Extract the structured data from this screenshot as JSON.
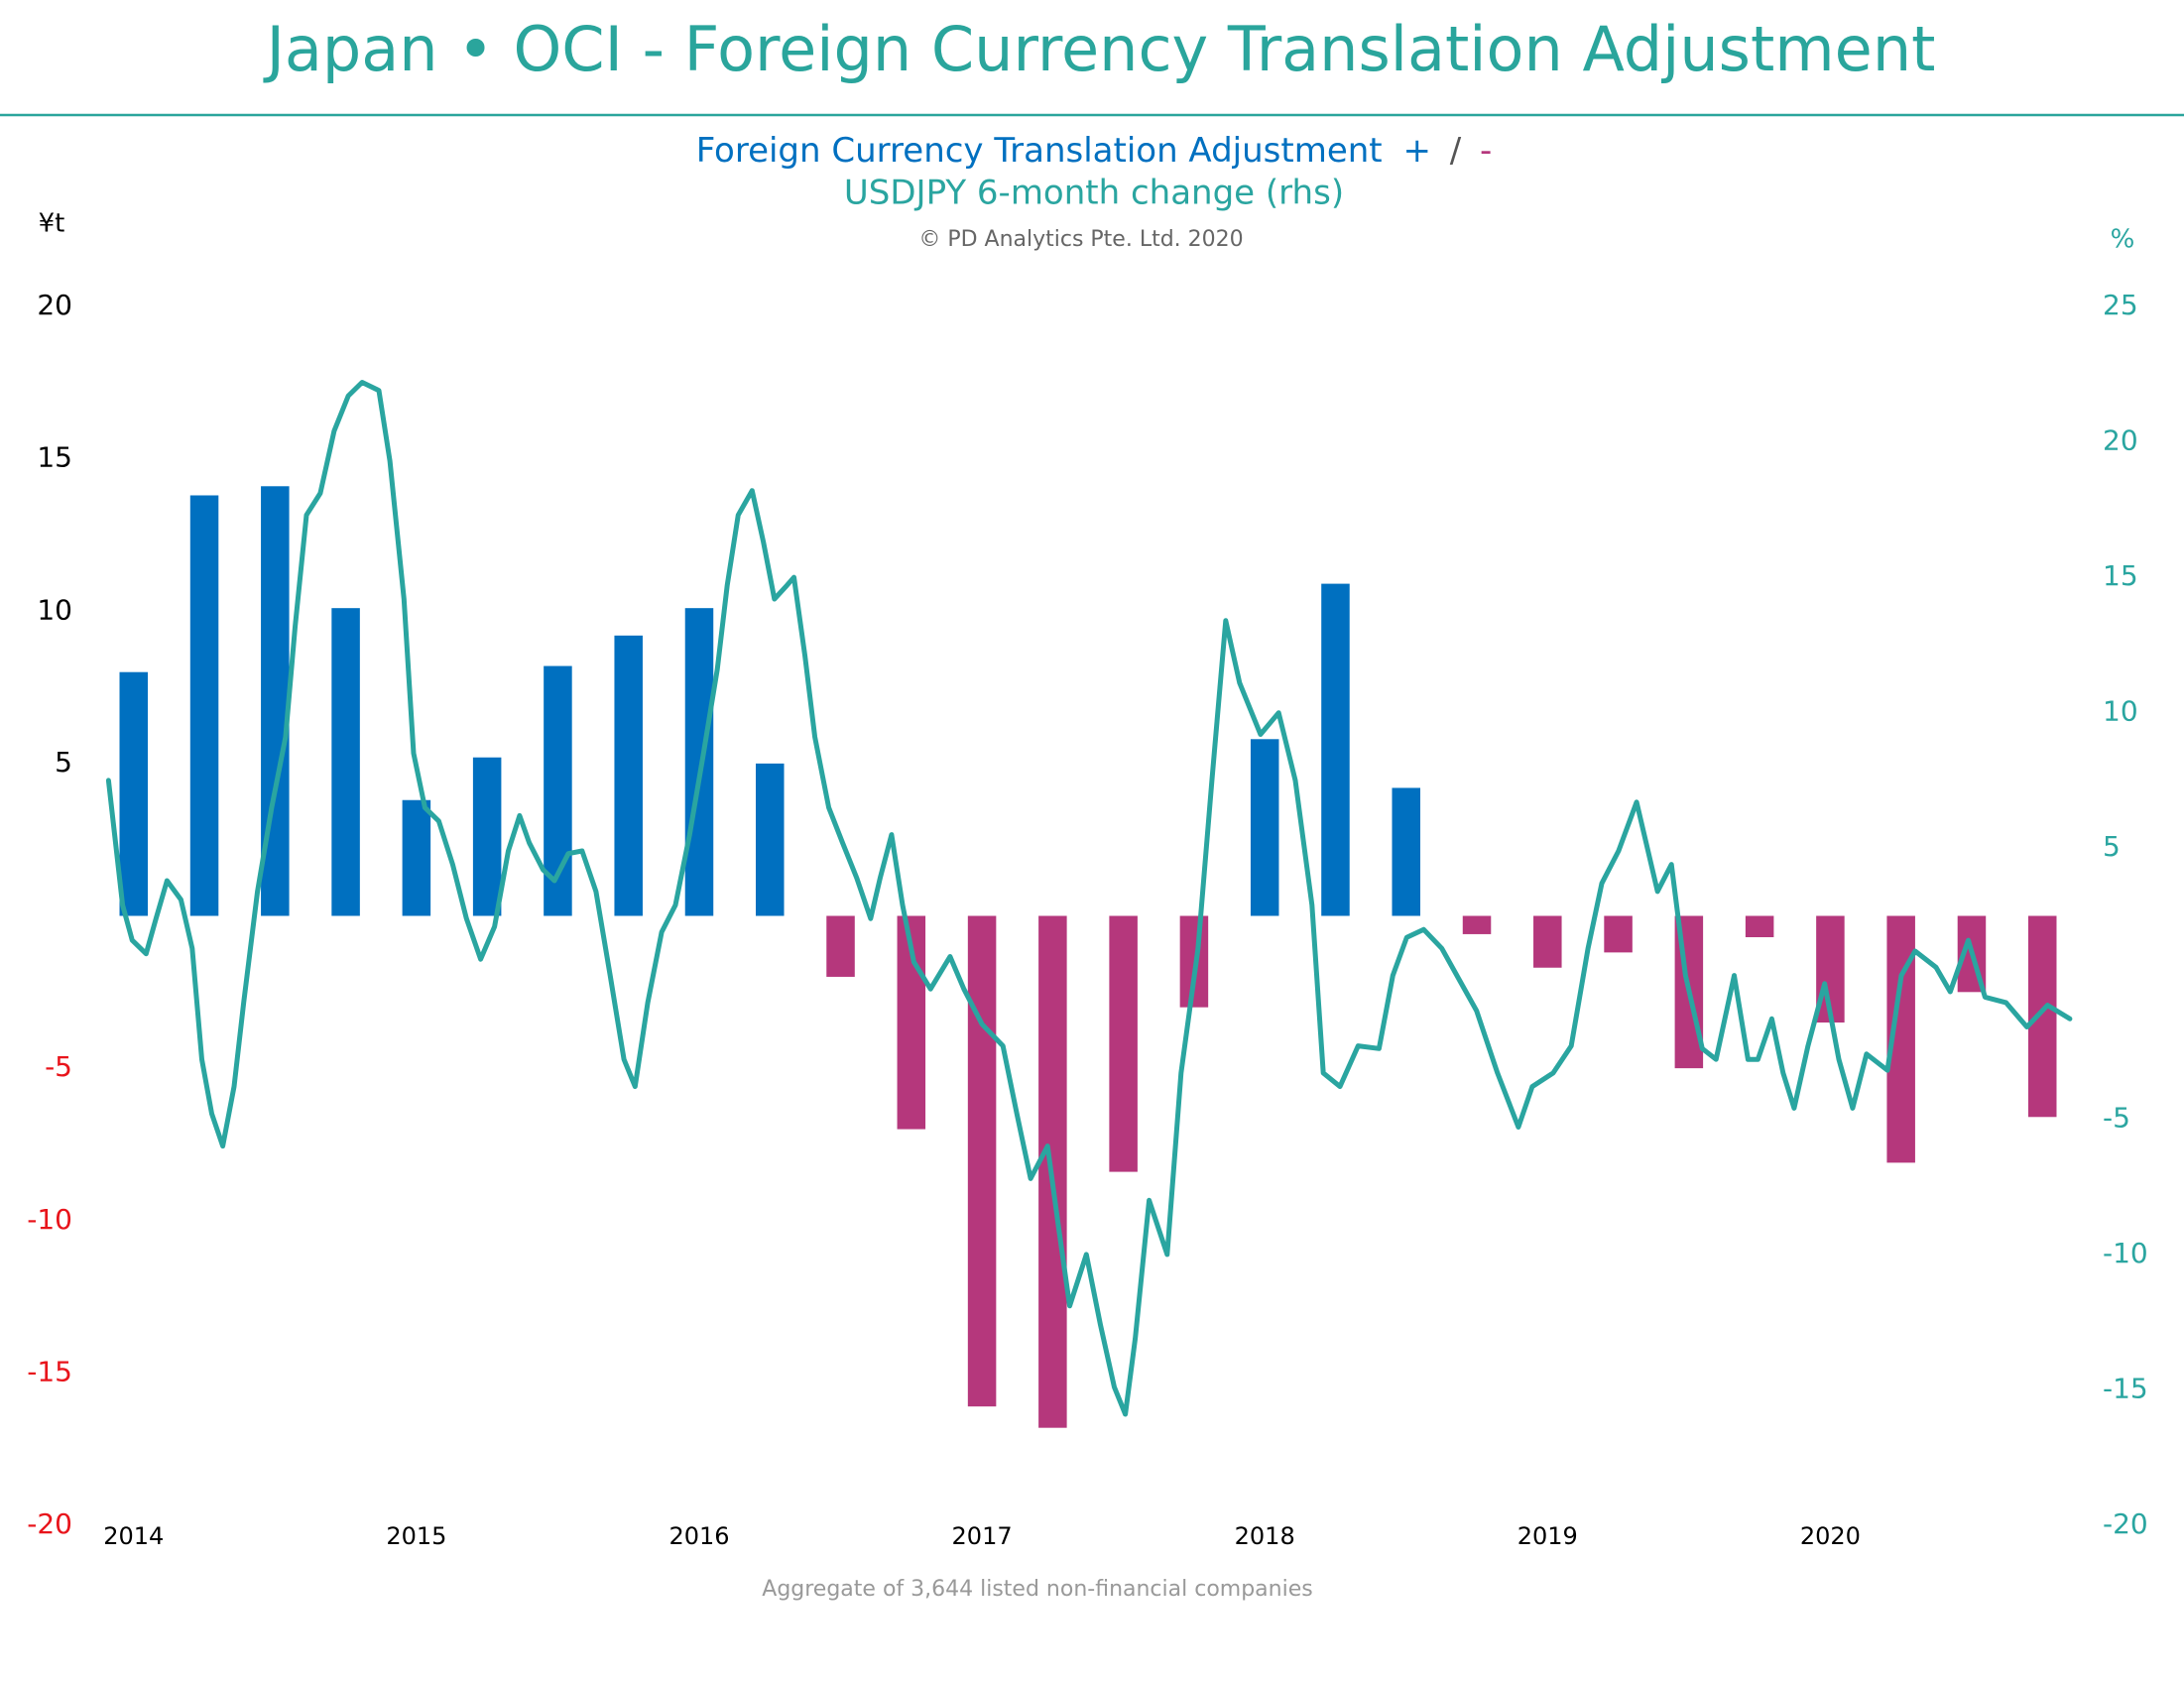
{
  "chart_data": {
    "type": "bar_line",
    "title": "Japan •  OCI - Foreign Currency Translation Adjustment",
    "positive_label": "+",
    "separator": "/",
    "negative_label": "-",
    "source": "© PD Analytics Pte. Ltd. 2020",
    "note": "Aggregate of 3,644 listed non-financial companies",
    "ylabel": "¥t",
    "y2label": "%",
    "xlim": [
      2013.85,
      2020.9
    ],
    "xticks": [
      2014,
      2015,
      2016,
      2017,
      2018,
      2019,
      2020
    ],
    "ylim": [
      -20,
      20
    ],
    "yticks": [
      -20,
      -15,
      -10,
      -5,
      5,
      10,
      15,
      20
    ],
    "y2lim": [
      -20,
      25
    ],
    "y2ticks": [
      -20,
      -15,
      -10,
      -5,
      5,
      10,
      15,
      20,
      25
    ],
    "title_color": "#2aa59c",
    "tick_color": "#000000",
    "negative_tick_color": "#e8141b",
    "series": [
      {
        "name": "Foreign Currency Translation Adjustment",
        "type": "bar",
        "color": "#0070c0",
        "negative_color": "#b5377c",
        "x": [
          2014,
          2014.25,
          2014.5,
          2014.75,
          2015,
          2015.25,
          2015.5,
          2015.75,
          2016,
          2016.25,
          2016.5,
          2016.75,
          2017,
          2017.25,
          2017.5,
          2017.75,
          2018,
          2018.25,
          2018.5,
          2018.75,
          2019,
          2019.25,
          2019.5,
          2019.75,
          2020,
          2020.25,
          2020.5,
          2020.75
        ],
        "values": [
          8.0,
          13.8,
          14.1,
          10.1,
          3.8,
          5.2,
          8.2,
          9.2,
          10.1,
          5.0,
          -2.0,
          -7.0,
          -16.1,
          -16.8,
          -8.4,
          -3.0,
          5.8,
          10.9,
          4.2,
          -0.6,
          -1.7,
          -1.2,
          -5.0,
          -0.7,
          -3.5,
          -8.1,
          -2.5,
          -6.6
        ]
      },
      {
        "name": "USDJPY 6-month change (rhs)",
        "type": "line",
        "axis": "y2",
        "color": "#2aa5a0",
        "x": [
          2013.911,
          2013.961,
          2013.995,
          2014.044,
          2014.079,
          2014.118,
          2014.167,
          2014.207,
          2014.241,
          2014.276,
          2014.315,
          2014.355,
          2014.389,
          2014.438,
          2014.488,
          2014.537,
          2014.571,
          2014.611,
          2014.66,
          2014.709,
          2014.759,
          2014.808,
          2014.867,
          2014.906,
          2014.956,
          2014.99,
          2015.03,
          2015.079,
          2015.128,
          2015.177,
          2015.227,
          2015.276,
          2015.325,
          2015.365,
          2015.399,
          2015.448,
          2015.488,
          2015.537,
          2015.586,
          2015.635,
          2015.685,
          2015.734,
          2015.773,
          2015.818,
          2015.867,
          2015.916,
          2015.966,
          2016.015,
          2016.064,
          2016.099,
          2016.138,
          2016.187,
          2016.227,
          2016.266,
          2016.31,
          2016.335,
          2016.374,
          2016.409,
          2016.458,
          2016.507,
          2016.557,
          2016.606,
          2016.64,
          2016.68,
          2016.719,
          2016.759,
          2016.818,
          2016.887,
          2016.936,
          2017.0,
          2017.074,
          2017.123,
          2017.172,
          2017.232,
          2017.271,
          2017.31,
          2017.369,
          2017.419,
          2017.468,
          2017.507,
          2017.542,
          2017.591,
          2017.655,
          2017.704,
          2017.764,
          2017.813,
          2017.862,
          2017.911,
          2017.985,
          2018.049,
          2018.108,
          2018.167,
          2018.207,
          2018.266,
          2018.33,
          2018.404,
          2018.453,
          2018.502,
          2018.562,
          2018.626,
          2018.69,
          2018.749,
          2018.823,
          2018.897,
          2018.946,
          2019.02,
          2019.084,
          2019.143,
          2019.192,
          2019.251,
          2019.315,
          2019.389,
          2019.438,
          2019.488,
          2019.547,
          2019.596,
          2019.66,
          2019.709,
          2019.744,
          2019.793,
          2019.833,
          2019.872,
          2019.921,
          2019.98,
          2020.03,
          2020.079,
          2020.128,
          2020.202,
          2020.251,
          2020.3,
          2020.374,
          2020.424,
          2020.488,
          2020.547,
          2020.621,
          2020.695,
          2020.768,
          2020.847
        ],
        "values": [
          7.5,
          2.9,
          1.6,
          1.1,
          2.4,
          3.8,
          3.1,
          1.3,
          -2.8,
          -4.8,
          -6.0,
          -3.8,
          -0.7,
          3.4,
          6.5,
          9.1,
          13.2,
          17.3,
          18.1,
          20.4,
          21.7,
          22.2,
          21.9,
          19.3,
          14.2,
          8.5,
          6.5,
          6.0,
          4.4,
          2.4,
          0.9,
          2.1,
          4.9,
          6.2,
          5.2,
          4.2,
          3.8,
          4.8,
          4.9,
          3.4,
          0.3,
          -2.8,
          -3.8,
          -0.7,
          1.9,
          2.9,
          5.5,
          8.5,
          11.6,
          14.7,
          17.3,
          18.2,
          16.3,
          14.2,
          14.7,
          15.0,
          12.1,
          9.1,
          6.5,
          5.2,
          3.9,
          2.4,
          3.9,
          5.5,
          2.9,
          0.8,
          -0.2,
          1.0,
          -0.2,
          -1.5,
          -2.3,
          -4.8,
          -7.2,
          -6.0,
          -9.0,
          -11.9,
          -10.0,
          -12.6,
          -14.9,
          -15.9,
          -13.1,
          -8.0,
          -10.0,
          -3.3,
          1.3,
          7.5,
          13.4,
          11.1,
          9.2,
          10.0,
          7.5,
          2.9,
          -3.3,
          -3.8,
          -2.3,
          -2.4,
          0.3,
          1.7,
          2.0,
          1.3,
          0.1,
          -1.0,
          -3.3,
          -5.3,
          -3.8,
          -3.3,
          -2.3,
          1.3,
          3.7,
          4.9,
          6.7,
          3.4,
          4.4,
          0.3,
          -2.4,
          -2.8,
          0.3,
          -2.8,
          -2.8,
          -1.3,
          -3.3,
          -4.6,
          -2.3,
          0.0,
          -2.8,
          -4.6,
          -2.6,
          -3.2,
          0.3,
          1.2,
          0.6,
          -0.3,
          1.6,
          -0.5,
          -0.7,
          -1.6,
          -0.8,
          -1.3
        ]
      }
    ]
  }
}
